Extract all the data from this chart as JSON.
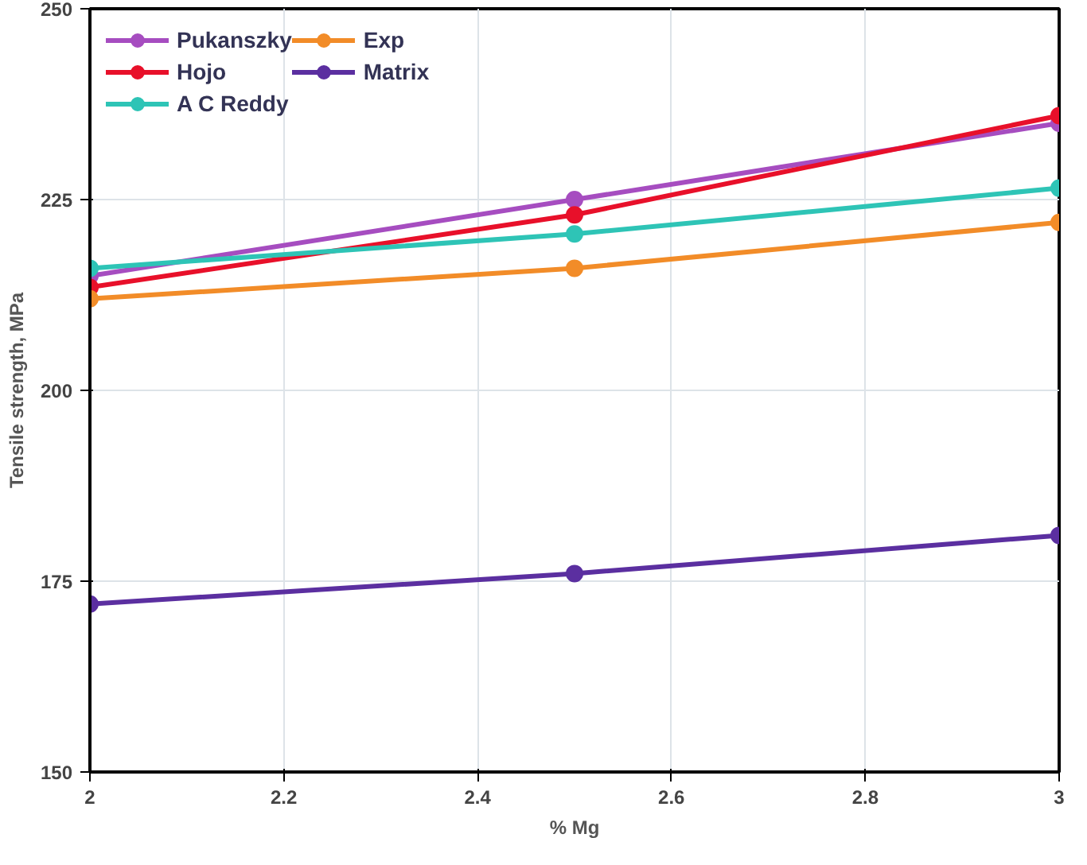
{
  "chart_data": {
    "type": "line",
    "xlabel": "% Mg",
    "ylabel": "Tensile strength, MPa",
    "x": [
      2,
      2.5,
      3
    ],
    "xlim": [
      2,
      3
    ],
    "xticks": [
      2,
      2.2,
      2.4,
      2.6,
      2.8,
      3
    ],
    "ylim": [
      150,
      250
    ],
    "yticks": [
      150,
      175,
      200,
      225,
      250
    ],
    "grid": true,
    "legend": "top left",
    "marker": "circle",
    "line_style": "solid",
    "series": [
      {
        "name": "Pukanszky",
        "color": "#a64dc0",
        "values": [
          215,
          225,
          235
        ]
      },
      {
        "name": "Hojo",
        "color": "#e8102a",
        "values": [
          213.5,
          223,
          236
        ]
      },
      {
        "name": "A C Reddy",
        "color": "#2ec4b6",
        "values": [
          216,
          220.5,
          226.5
        ]
      },
      {
        "name": "Exp",
        "color": "#f28c28",
        "values": [
          212,
          216,
          222
        ]
      },
      {
        "name": "Matrix",
        "color": "#5b2fa0",
        "values": [
          172,
          176,
          181
        ]
      }
    ]
  }
}
